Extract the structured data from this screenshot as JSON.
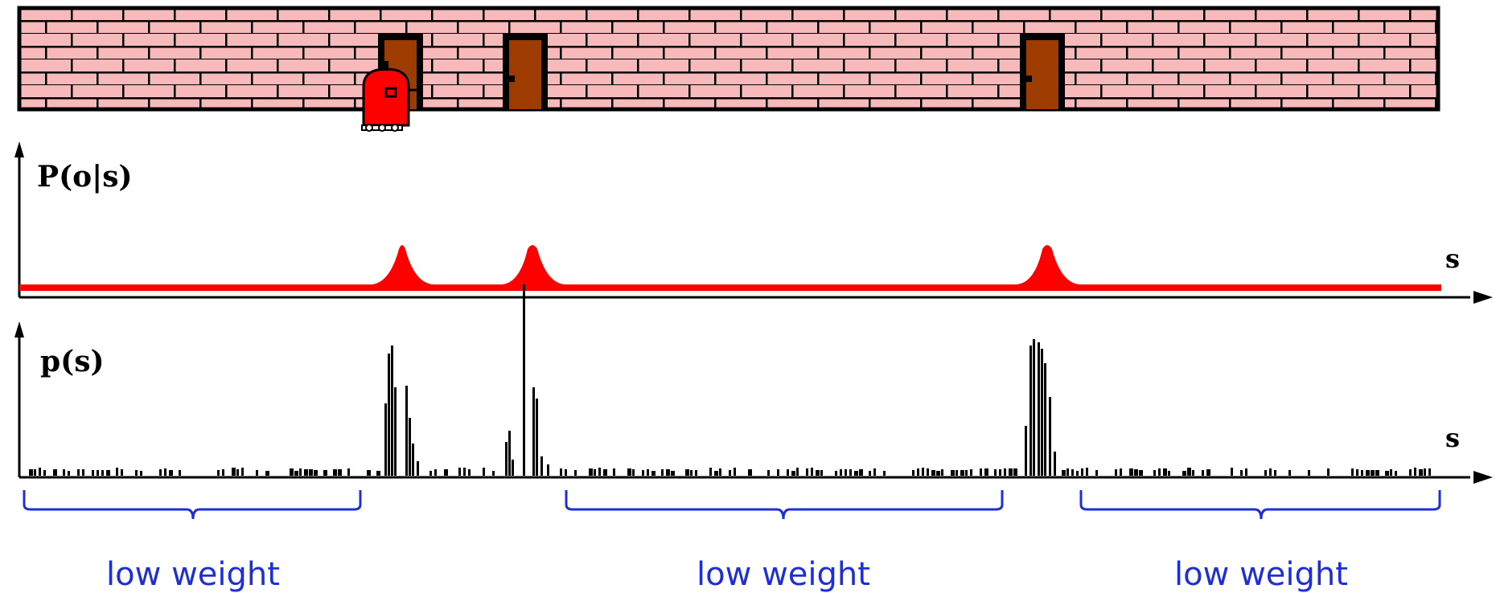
{
  "colors": {
    "brick": "#f7b9b9",
    "mortar": "#000000",
    "door": "#9e3b00",
    "robot": "#ff0000",
    "likelihood": "#ff0000",
    "particles": "#000000",
    "brace": "#1f2fd6"
  },
  "icons": {
    "robot": "robot-icon",
    "door": "door-icon"
  },
  "wall": {
    "door_count": 3,
    "robot": "robot-icon"
  },
  "likelihood": {
    "label": "P(o|s)",
    "x_label": "s",
    "peaks": 3
  },
  "belief": {
    "label": "p(s)",
    "x_label": "s"
  },
  "captions": [
    "low weight",
    "low weight",
    "low weight"
  ]
}
